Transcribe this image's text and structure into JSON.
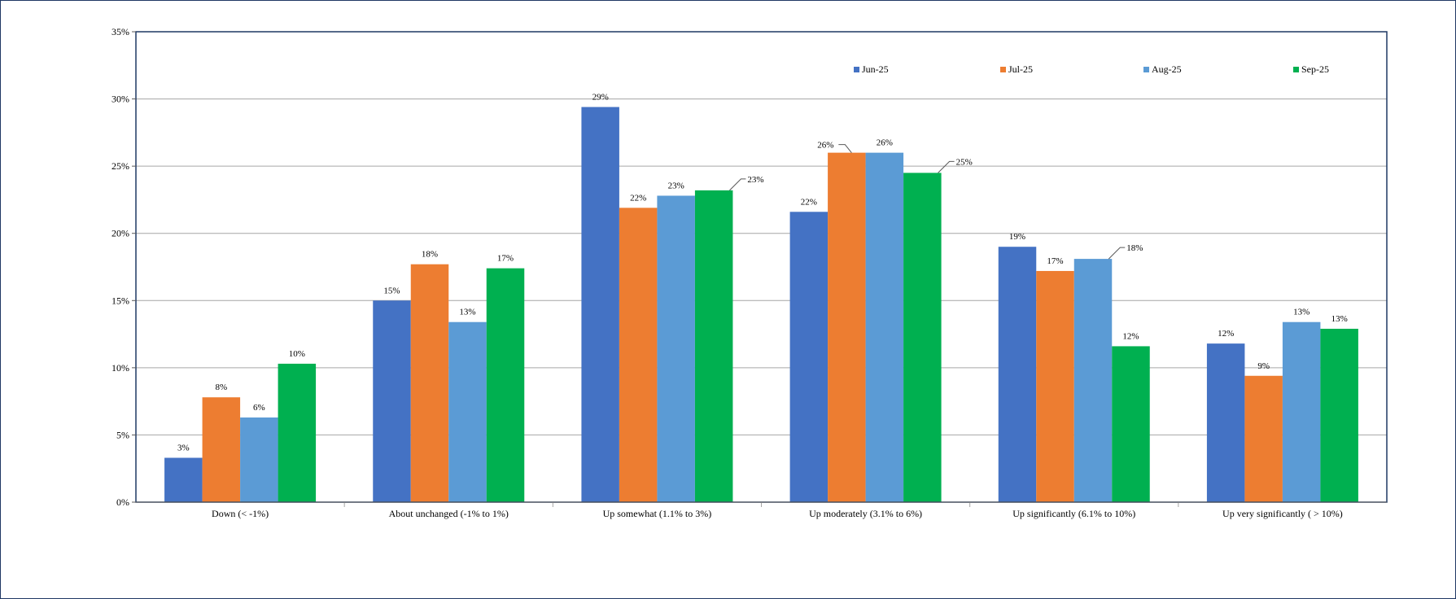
{
  "chart_data": {
    "type": "bar",
    "title": "",
    "xlabel": "",
    "ylabel": "",
    "ylim": [
      0,
      35
    ],
    "y_ticks": [
      0,
      5,
      10,
      15,
      20,
      25,
      30,
      35
    ],
    "y_tick_labels": [
      "0%",
      "5%",
      "10%",
      "15%",
      "20%",
      "25%",
      "30%",
      "35%"
    ],
    "grid": true,
    "legend_position": "top",
    "categories": [
      "Down (< -1%)",
      "About unchanged (-1% to 1%)",
      "Up somewhat (1.1% to 3%)",
      "Up moderately (3.1% to 6%)",
      "Up significantly (6.1% to 10%)",
      "Up very significantly ( > 10%)"
    ],
    "series": [
      {
        "name": "Jun-25",
        "color": "#4472c4",
        "values": [
          3.3,
          15.0,
          29.4,
          21.6,
          19.0,
          11.8
        ],
        "labels": [
          "3%",
          "15%",
          "29%",
          "22%",
          "19%",
          "12%"
        ]
      },
      {
        "name": "Jul-25",
        "color": "#ed7d31",
        "values": [
          7.8,
          17.7,
          21.9,
          26.0,
          17.2,
          9.4
        ],
        "labels": [
          "8%",
          "18%",
          "22%",
          "26%",
          "17%",
          "9%"
        ]
      },
      {
        "name": "Aug-25",
        "color": "#5b9bd5",
        "values": [
          6.3,
          13.4,
          22.8,
          26.0,
          18.1,
          13.4
        ],
        "labels": [
          "6%",
          "13%",
          "23%",
          "26%",
          "18%",
          "13%"
        ]
      },
      {
        "name": "Sep-25",
        "color": "#00b050",
        "values": [
          10.3,
          17.4,
          23.2,
          24.5,
          11.6,
          12.9
        ],
        "labels": [
          "10%",
          "17%",
          "23%",
          "25%",
          "12%",
          "13%"
        ]
      }
    ]
  }
}
